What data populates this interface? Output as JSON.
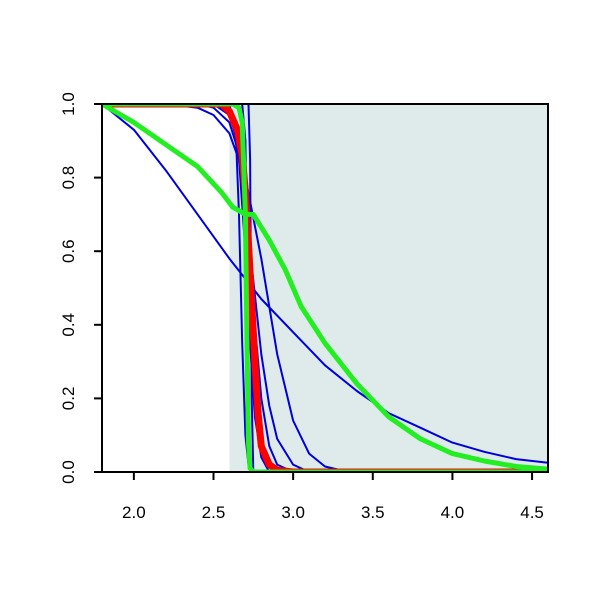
{
  "chart_data": {
    "type": "line",
    "title": "",
    "xlabel": "",
    "ylabel": "",
    "xlim": [
      1.8,
      4.6
    ],
    "ylim": [
      0.0,
      1.0
    ],
    "x_ticks": [
      2.0,
      2.5,
      3.0,
      3.5,
      4.0,
      4.5
    ],
    "x_tick_labels": [
      "2.0",
      "2.5",
      "3.0",
      "3.5",
      "4.0",
      "4.5"
    ],
    "y_ticks": [
      0.0,
      0.2,
      0.4,
      0.6,
      0.8,
      1.0
    ],
    "y_tick_labels": [
      "0.0",
      "0.2",
      "0.4",
      "0.6",
      "0.8",
      "1.0"
    ],
    "grid": false,
    "legend": "none",
    "shaded_region": {
      "x_start": 2.6,
      "x_end": 4.6,
      "color": "#deebea"
    },
    "colors": {
      "blue": "#0000dd",
      "red": "#ff0000",
      "green": "#22ee22",
      "shade": "#deebea"
    },
    "series": [
      {
        "color": "#0000dd",
        "width": 2,
        "x": [
          1.8,
          2.0,
          2.2,
          2.4,
          2.6,
          2.8,
          3.0,
          3.2,
          3.4,
          3.6,
          3.8,
          4.0,
          4.2,
          4.4,
          4.6
        ],
        "y": [
          1.0,
          0.93,
          0.82,
          0.7,
          0.58,
          0.47,
          0.38,
          0.29,
          0.22,
          0.16,
          0.12,
          0.08,
          0.055,
          0.035,
          0.025
        ]
      },
      {
        "color": "#0000dd",
        "width": 2,
        "x": [
          1.8,
          2.2,
          2.4,
          2.5,
          2.6,
          2.7,
          2.8,
          2.9,
          3.0,
          3.1,
          3.2,
          3.3,
          3.5,
          4.6
        ],
        "y": [
          1.0,
          1.0,
          0.99,
          0.97,
          0.92,
          0.8,
          0.58,
          0.32,
          0.14,
          0.05,
          0.015,
          0.005,
          0.0,
          0.0
        ]
      },
      {
        "color": "#0000dd",
        "width": 2,
        "x": [
          1.8,
          2.4,
          2.5,
          2.6,
          2.65,
          2.7,
          2.75,
          2.8,
          2.85,
          2.9,
          3.0,
          3.1,
          4.6
        ],
        "y": [
          1.0,
          1.0,
          0.99,
          0.95,
          0.88,
          0.72,
          0.52,
          0.32,
          0.18,
          0.09,
          0.02,
          0.0,
          0.0
        ]
      },
      {
        "color": "#0000dd",
        "width": 2,
        "x": [
          1.8,
          2.5,
          2.6,
          2.65,
          2.7,
          2.75,
          2.8,
          2.85,
          2.9,
          3.0,
          4.6
        ],
        "y": [
          1.0,
          1.0,
          0.97,
          0.9,
          0.72,
          0.45,
          0.2,
          0.07,
          0.02,
          0.0,
          0.0
        ]
      },
      {
        "color": "#0000dd",
        "width": 2,
        "x": [
          1.8,
          2.55,
          2.62,
          2.66,
          2.7,
          2.73,
          2.76,
          2.8,
          2.85,
          4.6
        ],
        "y": [
          1.0,
          1.0,
          0.96,
          0.85,
          0.6,
          0.35,
          0.15,
          0.04,
          0.0,
          0.0
        ]
      },
      {
        "color": "#0000dd",
        "width": 2,
        "x": [
          1.8,
          2.6,
          2.64,
          2.66,
          2.68,
          2.7,
          2.72,
          2.74,
          2.78,
          4.6
        ],
        "y": [
          1.0,
          1.0,
          0.92,
          0.7,
          0.35,
          0.1,
          0.02,
          0.0,
          0.0,
          0.0
        ]
      },
      {
        "color": "#0000dd",
        "width": 2,
        "x": [
          1.8,
          2.68,
          2.7,
          2.71,
          2.72,
          2.73,
          4.6
        ],
        "y": [
          1.0,
          1.0,
          0.9,
          0.5,
          0.1,
          0.0,
          0.0
        ]
      },
      {
        "color": "#0000dd",
        "width": 2,
        "x": [
          1.8,
          2.72,
          2.73,
          2.74,
          2.75,
          4.6
        ],
        "y": [
          1.0,
          1.0,
          0.85,
          0.2,
          0.0,
          0.0
        ]
      },
      {
        "color": "#ff0000",
        "width": 7,
        "x": [
          1.8,
          2.55,
          2.6,
          2.65,
          2.68,
          2.7,
          2.72,
          2.74,
          2.76,
          2.78,
          2.8,
          2.85,
          2.9,
          3.0,
          4.6
        ],
        "y": [
          1.0,
          1.0,
          0.98,
          0.93,
          0.86,
          0.76,
          0.62,
          0.46,
          0.3,
          0.16,
          0.07,
          0.02,
          0.005,
          0.0,
          0.0
        ]
      },
      {
        "color": "#22ee22",
        "width": 5,
        "x": [
          1.8,
          2.0,
          2.2,
          2.4,
          2.55,
          2.62,
          2.66,
          2.7,
          2.75,
          2.85,
          2.95,
          3.05,
          3.2,
          3.4,
          3.6,
          3.8,
          4.0,
          4.2,
          4.4,
          4.6
        ],
        "y": [
          1.0,
          0.95,
          0.89,
          0.83,
          0.76,
          0.72,
          0.71,
          0.7,
          0.7,
          0.63,
          0.55,
          0.45,
          0.35,
          0.24,
          0.15,
          0.09,
          0.05,
          0.03,
          0.015,
          0.008
        ]
      },
      {
        "color": "#22ee22",
        "width": 5,
        "x": [
          1.8,
          2.62,
          2.66,
          2.68,
          2.7,
          2.71,
          2.72,
          2.73,
          2.75,
          4.6
        ],
        "y": [
          1.0,
          1.0,
          0.99,
          0.95,
          0.7,
          0.35,
          0.08,
          0.01,
          0.0,
          0.0
        ]
      }
    ]
  }
}
